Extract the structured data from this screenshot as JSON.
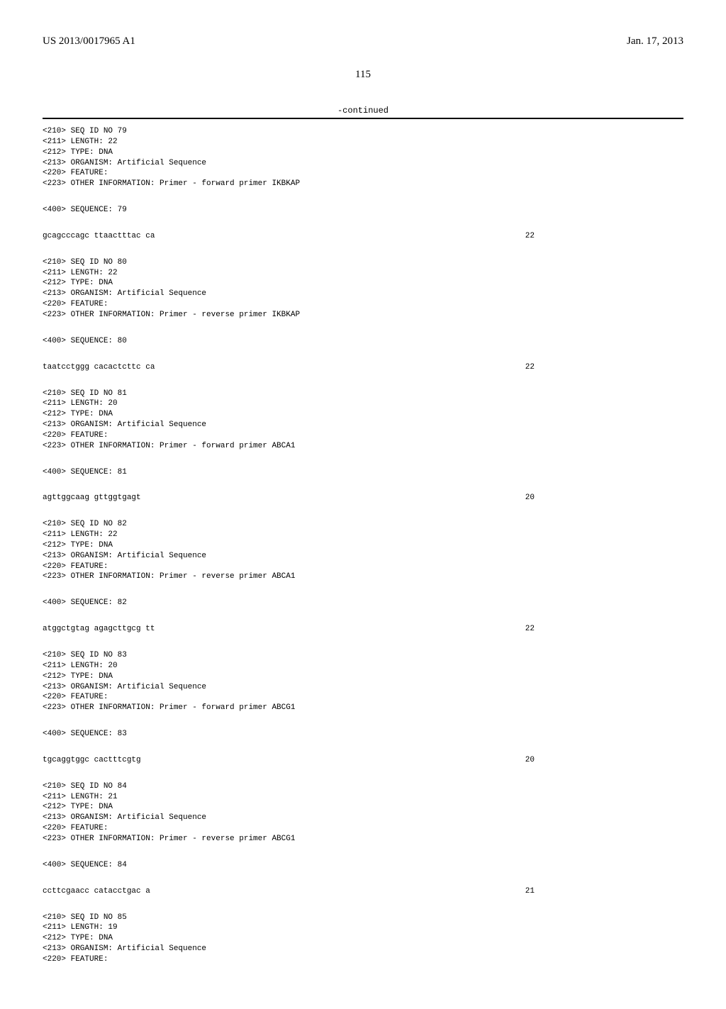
{
  "header": {
    "left": "US 2013/0017965 A1",
    "right": "Jan. 17, 2013"
  },
  "page_number": "115",
  "continued": "-continued",
  "sequences": [
    {
      "meta": [
        "<210> SEQ ID NO 79",
        "<211> LENGTH: 22",
        "<212> TYPE: DNA",
        "<213> ORGANISM: Artificial Sequence",
        "<220> FEATURE:",
        "<223> OTHER INFORMATION: Primer - forward primer IKBKAP"
      ],
      "seq_label": "<400> SEQUENCE: 79",
      "seq_text": "gcagcccagc ttaactttac ca",
      "seq_len": "22"
    },
    {
      "meta": [
        "<210> SEQ ID NO 80",
        "<211> LENGTH: 22",
        "<212> TYPE: DNA",
        "<213> ORGANISM: Artificial Sequence",
        "<220> FEATURE:",
        "<223> OTHER INFORMATION: Primer - reverse primer IKBKAP"
      ],
      "seq_label": "<400> SEQUENCE: 80",
      "seq_text": "taatcctggg cacactcttc ca",
      "seq_len": "22"
    },
    {
      "meta": [
        "<210> SEQ ID NO 81",
        "<211> LENGTH: 20",
        "<212> TYPE: DNA",
        "<213> ORGANISM: Artificial Sequence",
        "<220> FEATURE:",
        "<223> OTHER INFORMATION: Primer - forward primer ABCA1"
      ],
      "seq_label": "<400> SEQUENCE: 81",
      "seq_text": "agttggcaag gttggtgagt",
      "seq_len": "20"
    },
    {
      "meta": [
        "<210> SEQ ID NO 82",
        "<211> LENGTH: 22",
        "<212> TYPE: DNA",
        "<213> ORGANISM: Artificial Sequence",
        "<220> FEATURE:",
        "<223> OTHER INFORMATION: Primer - reverse primer ABCA1"
      ],
      "seq_label": "<400> SEQUENCE: 82",
      "seq_text": "atggctgtag agagcttgcg tt",
      "seq_len": "22"
    },
    {
      "meta": [
        "<210> SEQ ID NO 83",
        "<211> LENGTH: 20",
        "<212> TYPE: DNA",
        "<213> ORGANISM: Artificial Sequence",
        "<220> FEATURE:",
        "<223> OTHER INFORMATION: Primer - forward primer ABCG1"
      ],
      "seq_label": "<400> SEQUENCE: 83",
      "seq_text": "tgcaggtggc cactttcgtg",
      "seq_len": "20"
    },
    {
      "meta": [
        "<210> SEQ ID NO 84",
        "<211> LENGTH: 21",
        "<212> TYPE: DNA",
        "<213> ORGANISM: Artificial Sequence",
        "<220> FEATURE:",
        "<223> OTHER INFORMATION: Primer - reverse primer ABCG1"
      ],
      "seq_label": "<400> SEQUENCE: 84",
      "seq_text": "ccttcgaacc catacctgac a",
      "seq_len": "21"
    },
    {
      "meta": [
        "<210> SEQ ID NO 85",
        "<211> LENGTH: 19",
        "<212> TYPE: DNA",
        "<213> ORGANISM: Artificial Sequence",
        "<220> FEATURE:"
      ],
      "seq_label": "",
      "seq_text": "",
      "seq_len": ""
    }
  ]
}
